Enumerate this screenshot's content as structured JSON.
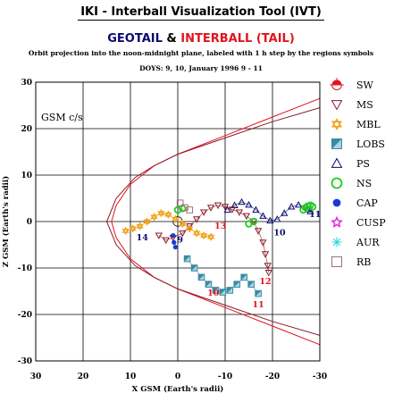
{
  "header": {
    "title": "IKI - Interball Visualization Tool (IVT)",
    "title2_part1": "GEOTAIL",
    "title2_amp": "&",
    "title2_part2": "INTERBALL (TAIL)",
    "subtitle": "Orbit projection into the noon-midnight plane, labeled with 1 h step by the regions symbols",
    "days_line": "DOYS: 9, 10,    January 1996 9 - 11",
    "frame_label": "GSM c/s"
  },
  "colors": {
    "navy": "#0b0b6e",
    "red": "#e0141e",
    "orbit_geotail": "#0b0b6e",
    "boundary_bowshock": "#e0141e",
    "boundary_magnetopause": "#8a1a2a",
    "grid": "#000000"
  },
  "chart_data": {
    "type": "scatter",
    "xlabel": "X GSM (Earth's radii)",
    "ylabel": "Z GSM (Earth's radii)",
    "xlim": [
      30,
      -30
    ],
    "ylim": [
      30,
      -30
    ],
    "x_ticks": [
      30,
      20,
      10,
      0,
      -10,
      -20,
      -30
    ],
    "y_ticks": [
      -30,
      -20,
      -10,
      0,
      10,
      20,
      30
    ],
    "x_tick_labels": [
      "30",
      "20",
      "10",
      "0",
      "-10",
      "-20",
      "-30"
    ],
    "y_tick_labels": [
      "-30",
      "-20",
      "-10",
      "0",
      "10",
      "20",
      "30"
    ],
    "grid": true,
    "legend_position": "right",
    "legend": [
      {
        "label": "SW",
        "symbol": "sw",
        "color": "#e0141e"
      },
      {
        "label": "MS",
        "symbol": "triangle-down",
        "color": "#8a1a2a"
      },
      {
        "label": "MBL",
        "symbol": "star6",
        "color": "#f2a21a"
      },
      {
        "label": "LOBS",
        "symbol": "square-half",
        "color": "#3a8aa0"
      },
      {
        "label": "PS",
        "symbol": "triangle-up",
        "color": "#0b0b6e"
      },
      {
        "label": "NS",
        "symbol": "circle",
        "color": "#22cc22"
      },
      {
        "label": "CAP",
        "symbol": "dot",
        "color": "#1a3ad6"
      },
      {
        "label": "CUSP",
        "symbol": "star5",
        "color": "#e020e0"
      },
      {
        "label": "AUR",
        "symbol": "asterisk",
        "color": "#22d6d6"
      },
      {
        "label": "RB",
        "symbol": "square",
        "color": "#a07070"
      }
    ],
    "earth": {
      "x": 0,
      "z": 0,
      "r": 1
    },
    "boundaries": [
      {
        "kind": "bowshock",
        "color": "#e0141e",
        "points": [
          [
            -30,
            26.5
          ],
          [
            -20,
            22.5
          ],
          [
            -10,
            18.5
          ],
          [
            0,
            14.5
          ],
          [
            5,
            12
          ],
          [
            10,
            8
          ],
          [
            13,
            3.5
          ],
          [
            14,
            0
          ],
          [
            13,
            -3.5
          ],
          [
            10,
            -8
          ],
          [
            5,
            -12
          ],
          [
            0,
            -14.5
          ],
          [
            -10,
            -18.5
          ],
          [
            -20,
            -22.5
          ],
          [
            -30,
            -26.5
          ]
        ]
      },
      {
        "kind": "magnetopause",
        "color": "#8a1a2a",
        "points": [
          [
            -30,
            -24.5
          ],
          [
            -20,
            -21.5
          ],
          [
            -10,
            -18
          ],
          [
            0,
            -14.5
          ],
          [
            5,
            -12
          ],
          [
            9,
            -9.5
          ],
          [
            13,
            -5
          ],
          [
            15,
            0
          ],
          [
            13,
            5
          ],
          [
            9,
            9.5
          ],
          [
            5,
            12
          ],
          [
            0,
            14.5
          ],
          [
            -10,
            18
          ],
          [
            -20,
            21.5
          ],
          [
            -30,
            24.5
          ]
        ]
      }
    ],
    "series": [
      {
        "name": "PS",
        "symbol": "triangle-up",
        "color": "#0b0b6e",
        "x": [
          -10.5,
          -12,
          -13.5,
          -15,
          -16.5,
          -18,
          -19.5,
          -21,
          -22.5,
          -24,
          -25.5,
          -27,
          -27.5,
          -28
        ],
        "z": [
          2.5,
          3.5,
          4.2,
          3.6,
          2.5,
          1.2,
          0.2,
          0.5,
          1.8,
          3.2,
          3.6,
          3.2,
          2.6,
          2.2
        ]
      },
      {
        "name": "MS",
        "symbol": "triangle-down",
        "color": "#8a1a2a",
        "x": [
          4,
          2.5,
          1,
          -1,
          -2.5,
          -4,
          -5.5,
          -7,
          -8.5,
          -10,
          -11.5,
          -13,
          -14.5,
          -16,
          -17,
          -18,
          -18.5,
          -19,
          -19.2
        ],
        "z": [
          -3,
          -4,
          -3.5,
          -2.5,
          -1,
          0.5,
          2,
          3,
          3.5,
          3.2,
          2.6,
          2,
          1.2,
          0,
          -2,
          -4.5,
          -7,
          -9.5,
          -11
        ]
      },
      {
        "name": "MBL",
        "symbol": "star6",
        "color": "#f2a21a",
        "x": [
          11,
          9.5,
          8,
          6.5,
          5,
          3.5,
          2,
          0.5,
          -1,
          -2.5,
          -4,
          -5.5,
          -7
        ],
        "z": [
          -2,
          -1.5,
          -1,
          0,
          1,
          1.8,
          1.5,
          0.5,
          -0.5,
          -1.5,
          -2.5,
          -3,
          -3.3
        ]
      },
      {
        "name": "LOBS",
        "symbol": "square-half",
        "color": "#3a8aa0",
        "x": [
          -2,
          -3.5,
          -5,
          -6.5,
          -8,
          -9.5,
          -11,
          -12.5,
          -14,
          -15.5,
          -17
        ],
        "z": [
          -8,
          -10,
          -12,
          -13.5,
          -14.8,
          -15.2,
          -14.8,
          -13.5,
          -12,
          -13.5,
          -15.5
        ]
      },
      {
        "name": "NS",
        "symbol": "circle",
        "color": "#22cc22",
        "x": [
          0,
          -1,
          -15,
          -16,
          -26.5,
          -27,
          -27.5,
          -28,
          -28.5
        ],
        "z": [
          2.5,
          2.8,
          -0.5,
          0,
          2.5,
          3,
          3.3,
          3.5,
          3.2
        ]
      },
      {
        "name": "CAP",
        "symbol": "dot",
        "color": "#1a3ad6",
        "x": [
          1,
          0.8,
          0.5
        ],
        "z": [
          -3,
          -4.5,
          -5.5
        ]
      },
      {
        "name": "RB",
        "symbol": "square",
        "color": "#a07070",
        "x": [
          -0.5,
          -1.5,
          -2.5
        ],
        "z": [
          4,
          3,
          2.5
        ]
      }
    ],
    "annotations": [
      {
        "text": "10",
        "x": -7.5,
        "z": -16,
        "color": "#e0141e"
      },
      {
        "text": "11",
        "x": -17,
        "z": -18.5,
        "color": "#e0141e"
      },
      {
        "text": "12",
        "x": -18.5,
        "z": -13.5,
        "color": "#e0141e"
      },
      {
        "text": "13",
        "x": -9,
        "z": -1.5,
        "color": "#e0141e"
      },
      {
        "text": "14",
        "x": 7.5,
        "z": -4,
        "color": "#0b0b6e"
      },
      {
        "text": "9",
        "x": -0.5,
        "z": -4.5,
        "color": "#0b0b6e"
      },
      {
        "text": "10",
        "x": -21.5,
        "z": -3,
        "color": "#0b0b6e"
      },
      {
        "text": "11",
        "x": -29,
        "z": 1,
        "color": "#0b0b6e"
      }
    ]
  }
}
